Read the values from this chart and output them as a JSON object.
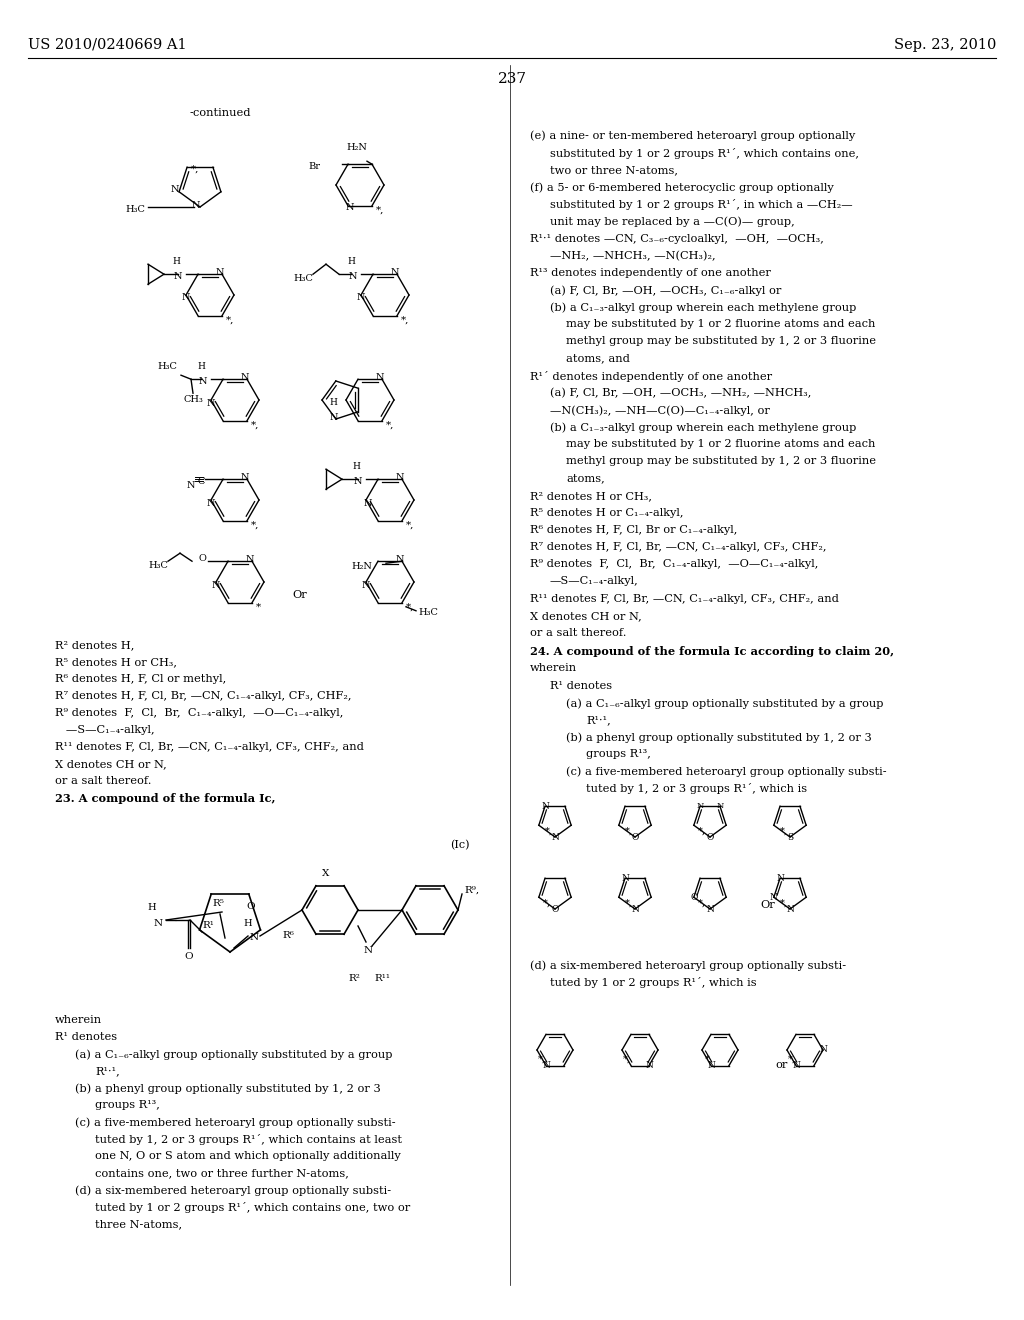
{
  "page_number": "237",
  "patent_left": "US 2010/0240669 A1",
  "patent_right": "Sep. 23, 2010",
  "bg": "#ffffff",
  "fs_header": 10.5,
  "fs_body": 8.2,
  "fs_page": 11,
  "fs_small": 7.5
}
